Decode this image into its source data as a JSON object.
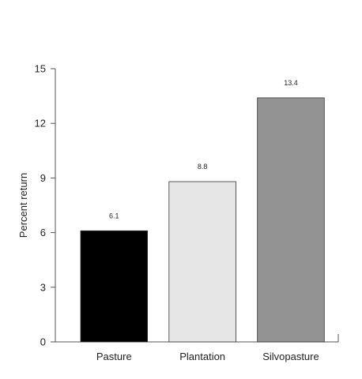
{
  "chart_data": {
    "type": "bar",
    "title": "",
    "xlabel": "",
    "ylabel": "Percent return",
    "ylim": [
      0,
      15
    ],
    "yticks": [
      0,
      3,
      6,
      9,
      12,
      15
    ],
    "categories": [
      "Pasture",
      "Plantation",
      "Silvopasture"
    ],
    "values": [
      6.1,
      8.8,
      13.4
    ],
    "data_labels": [
      "6.1",
      "8.8",
      "13.4"
    ],
    "bar_colors": [
      "#000000",
      "#e6e6e6",
      "#939393"
    ],
    "grid": false,
    "legend": "none"
  }
}
